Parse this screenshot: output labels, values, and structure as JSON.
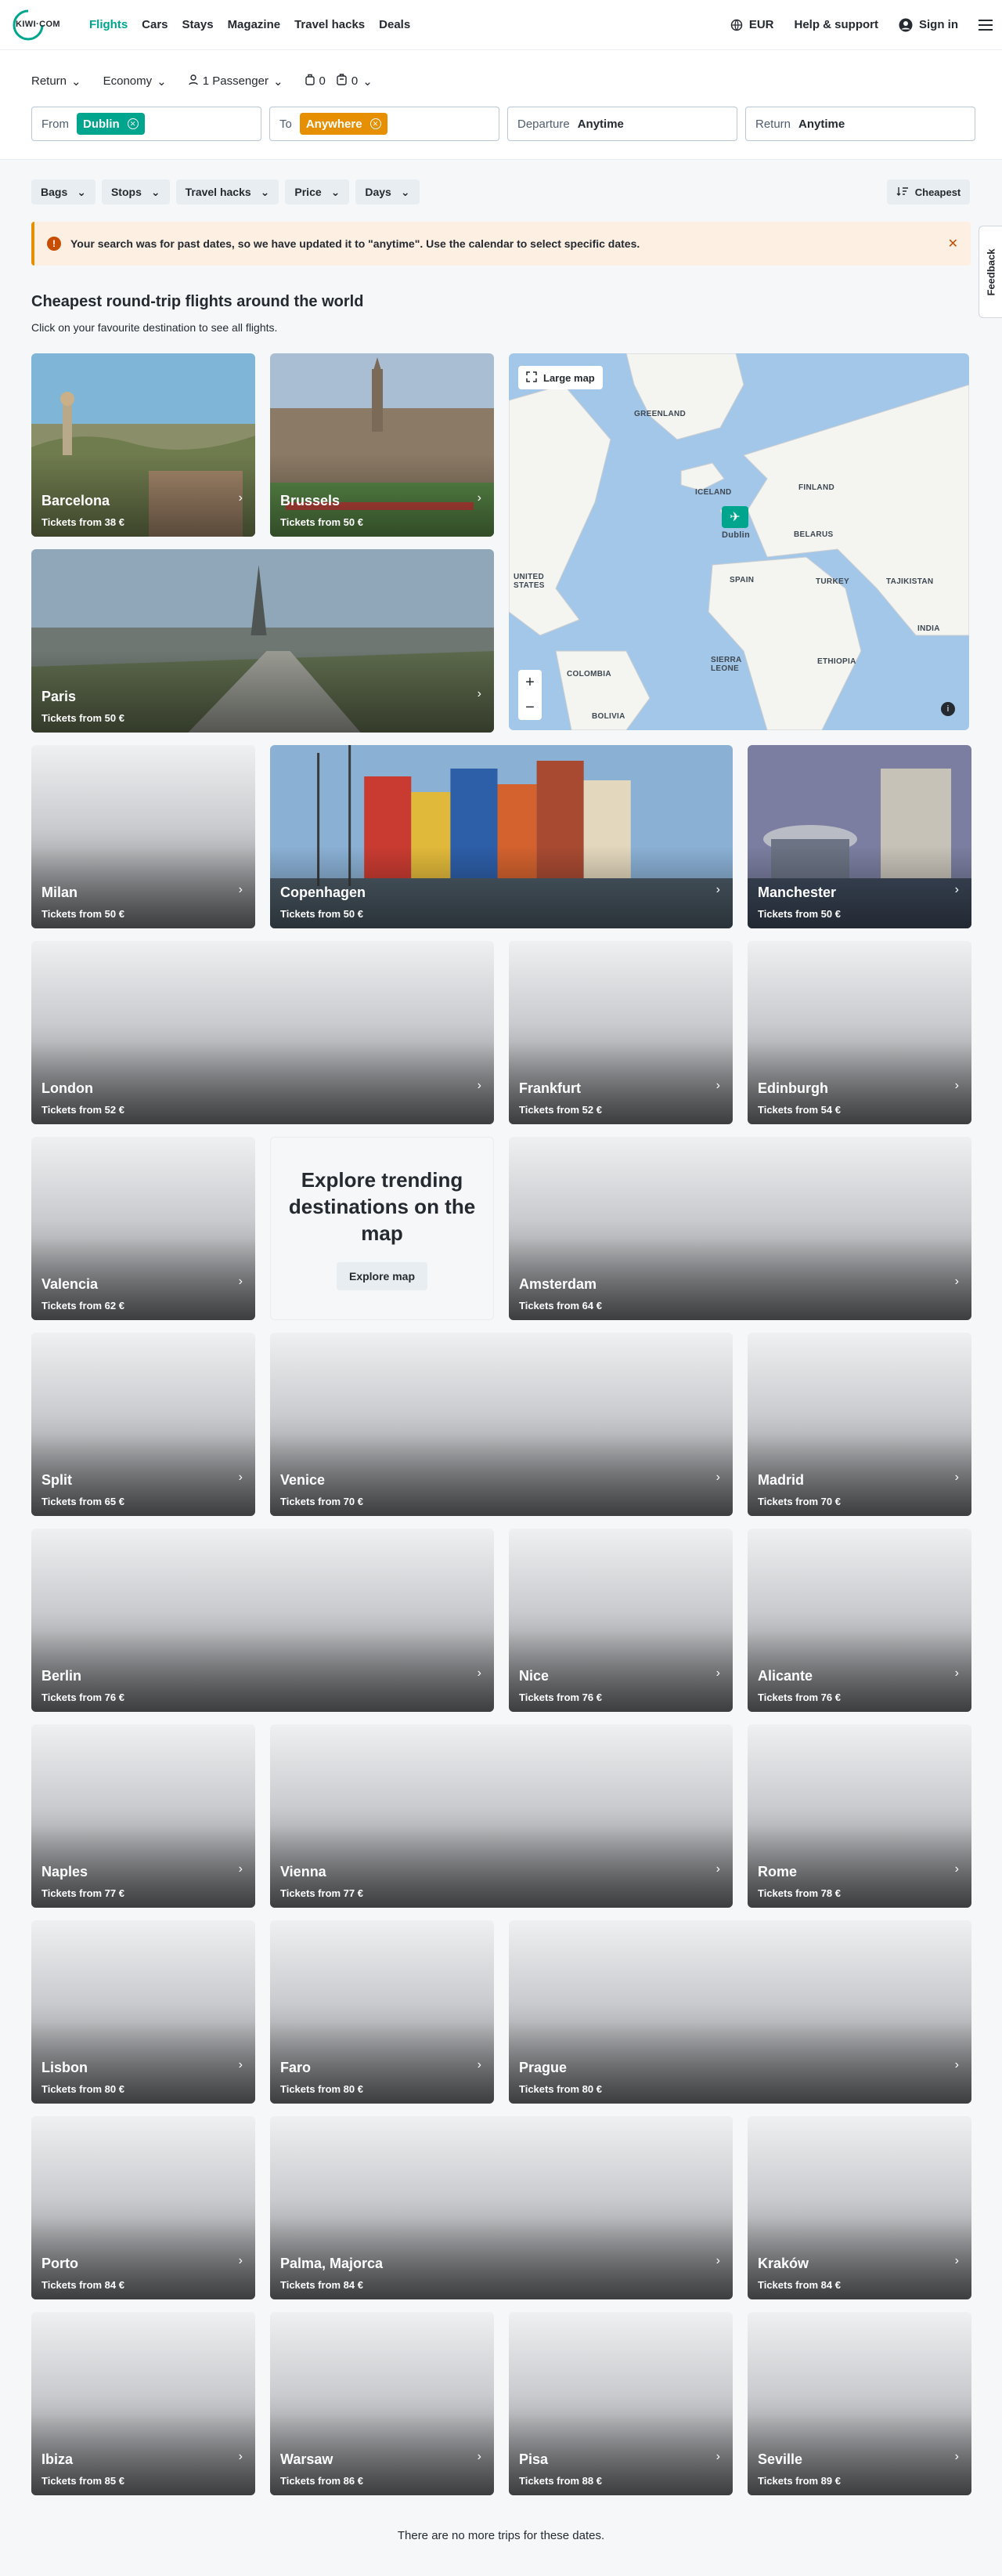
{
  "nav": {
    "logo_text": "KIWI·COM",
    "links": [
      "Flights",
      "Cars",
      "Stays",
      "Magazine",
      "Travel hacks",
      "Deals"
    ],
    "currency": "EUR",
    "help": "Help & support",
    "signin": "Sign in"
  },
  "search": {
    "trip_type": "Return",
    "cabin": "Economy",
    "passengers": "1 Passenger",
    "cabin_bags": "0",
    "checked_bags": "0",
    "from_label": "From",
    "from_value": "Dublin",
    "to_label": "To",
    "to_value": "Anywhere",
    "departure_label": "Departure",
    "departure_value": "Anytime",
    "return_label": "Return",
    "return_value": "Anytime"
  },
  "filters": [
    "Bags",
    "Stops",
    "Travel hacks",
    "Price",
    "Days"
  ],
  "sort_label": "Cheapest",
  "feedback_label": "Feedback",
  "alert_text": "Your search was for past dates, so we have updated it to \"anytime\". Use the calendar to select specific dates.",
  "section": {
    "title": "Cheapest round-trip flights around the world",
    "subtitle": "Click on your favourite destination to see all flights."
  },
  "map": {
    "large_map_label": "Large map",
    "labels": [
      "GREENLAND",
      "ICELAND",
      "FINLAND",
      "Dublin",
      "BELARUS",
      "UNITED STATES",
      "SPAIN",
      "TURKEY",
      "TAJIKISTAN",
      "INDIA",
      "COLOMBIA",
      "SIERRA LEONE",
      "ETHIOPIA",
      "BOLIVIA"
    ]
  },
  "explore": {
    "title": "Explore trending destinations on the map",
    "button": "Explore map"
  },
  "destinations": [
    {
      "city": "Barcelona",
      "price": "Tickets from 38 €"
    },
    {
      "city": "Brussels",
      "price": "Tickets from 50 €"
    },
    {
      "city": "Paris",
      "price": "Tickets from 50 €"
    },
    {
      "city": "Milan",
      "price": "Tickets from 50 €"
    },
    {
      "city": "Copenhagen",
      "price": "Tickets from 50 €"
    },
    {
      "city": "Manchester",
      "price": "Tickets from 50 €"
    },
    {
      "city": "London",
      "price": "Tickets from 52 €"
    },
    {
      "city": "Frankfurt",
      "price": "Tickets from 52 €"
    },
    {
      "city": "Edinburgh",
      "price": "Tickets from 54 €"
    },
    {
      "city": "Valencia",
      "price": "Tickets from 62 €"
    },
    {
      "city": "Amsterdam",
      "price": "Tickets from 64 €"
    },
    {
      "city": "Split",
      "price": "Tickets from 65 €"
    },
    {
      "city": "Venice",
      "price": "Tickets from 70 €"
    },
    {
      "city": "Madrid",
      "price": "Tickets from 70 €"
    },
    {
      "city": "Berlin",
      "price": "Tickets from 76 €"
    },
    {
      "city": "Nice",
      "price": "Tickets from 76 €"
    },
    {
      "city": "Alicante",
      "price": "Tickets from 76 €"
    },
    {
      "city": "Naples",
      "price": "Tickets from 77 €"
    },
    {
      "city": "Vienna",
      "price": "Tickets from 77 €"
    },
    {
      "city": "Rome",
      "price": "Tickets from 78 €"
    },
    {
      "city": "Lisbon",
      "price": "Tickets from 80 €"
    },
    {
      "city": "Faro",
      "price": "Tickets from 80 €"
    },
    {
      "city": "Prague",
      "price": "Tickets from 80 €"
    },
    {
      "city": "Porto",
      "price": "Tickets from 84 €"
    },
    {
      "city": "Palma, Majorca",
      "price": "Tickets from 84 €"
    },
    {
      "city": "Kraków",
      "price": "Tickets from 84 €"
    },
    {
      "city": "Ibiza",
      "price": "Tickets from 85 €"
    },
    {
      "city": "Warsaw",
      "price": "Tickets from 86 €"
    },
    {
      "city": "Pisa",
      "price": "Tickets from 88 €"
    },
    {
      "city": "Seville",
      "price": "Tickets from 89 €"
    }
  ],
  "footer_note": "There are no more trips for these dates.",
  "colors": {
    "accent": "#00a58e",
    "to_chip": "#e68f00",
    "alert_bg": "#fdf0e3"
  }
}
